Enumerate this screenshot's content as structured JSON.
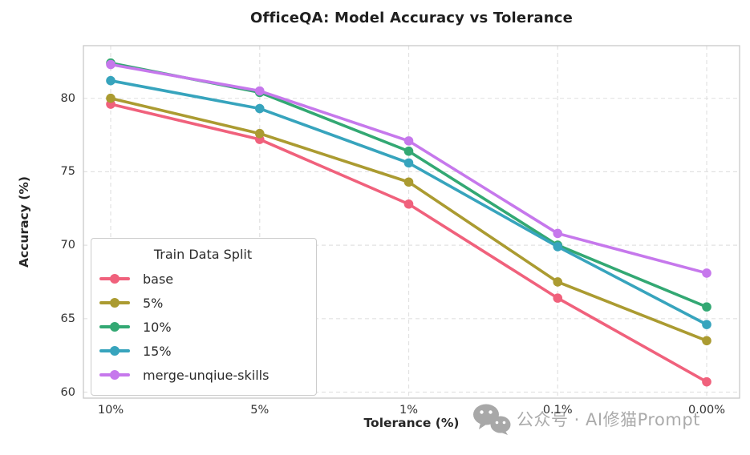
{
  "chart_data": {
    "type": "line",
    "title": "OfficeQA: Model Accuracy vs Tolerance",
    "xlabel": "Tolerance (%)",
    "ylabel": "Accuracy (%)",
    "categories": [
      "10%",
      "5%",
      "1%",
      "0.1%",
      "0.00%"
    ],
    "yticks": [
      80,
      75,
      70,
      65,
      60
    ],
    "ylim": [
      59.6,
      83.6
    ],
    "grid": true,
    "grid_style": "dashed",
    "legend": {
      "title": "Train Data Split",
      "position": "lower-left"
    },
    "series": [
      {
        "name": "base",
        "color": "#f0617c",
        "values": [
          79.6,
          77.2,
          72.8,
          66.4,
          60.7
        ]
      },
      {
        "name": "5%",
        "color": "#ab9b31",
        "values": [
          80.0,
          77.6,
          74.3,
          67.5,
          63.5
        ]
      },
      {
        "name": "10%",
        "color": "#33a873",
        "values": [
          82.4,
          80.4,
          76.4,
          70.0,
          65.8
        ]
      },
      {
        "name": "15%",
        "color": "#37a4bd",
        "values": [
          81.2,
          79.3,
          75.6,
          69.9,
          64.6
        ]
      },
      {
        "name": "merge-unqiue-skills",
        "color": "#c678ec",
        "values": [
          82.3,
          80.5,
          77.1,
          70.8,
          68.1
        ]
      }
    ]
  },
  "watermark": {
    "text": "公众号 · AI修猫Prompt",
    "icon": "wechat-icon",
    "color": "#ababab"
  }
}
